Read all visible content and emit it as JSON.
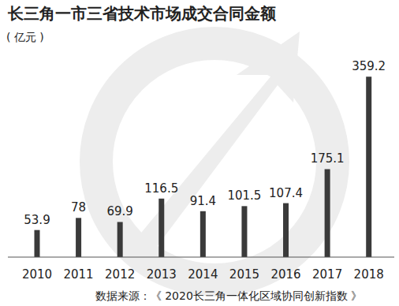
{
  "chart_data": {
    "type": "bar",
    "title": "长三角一市三省技术市场成交合同金额",
    "y_label": "( 亿元 )",
    "source": "数据来源：《 2020长三角一体化区域协同创新指数 》",
    "categories": [
      "2010",
      "2011",
      "2012",
      "2013",
      "2014",
      "2015",
      "2016",
      "2017",
      "2018"
    ],
    "values": [
      53.9,
      78,
      69.9,
      116.5,
      91.4,
      101.5,
      107.4,
      175.1,
      359.2
    ],
    "color": "#3a3a3a",
    "ylim": [
      0,
      380
    ],
    "data_labels": true,
    "tick_labels": "x",
    "grid": false
  }
}
